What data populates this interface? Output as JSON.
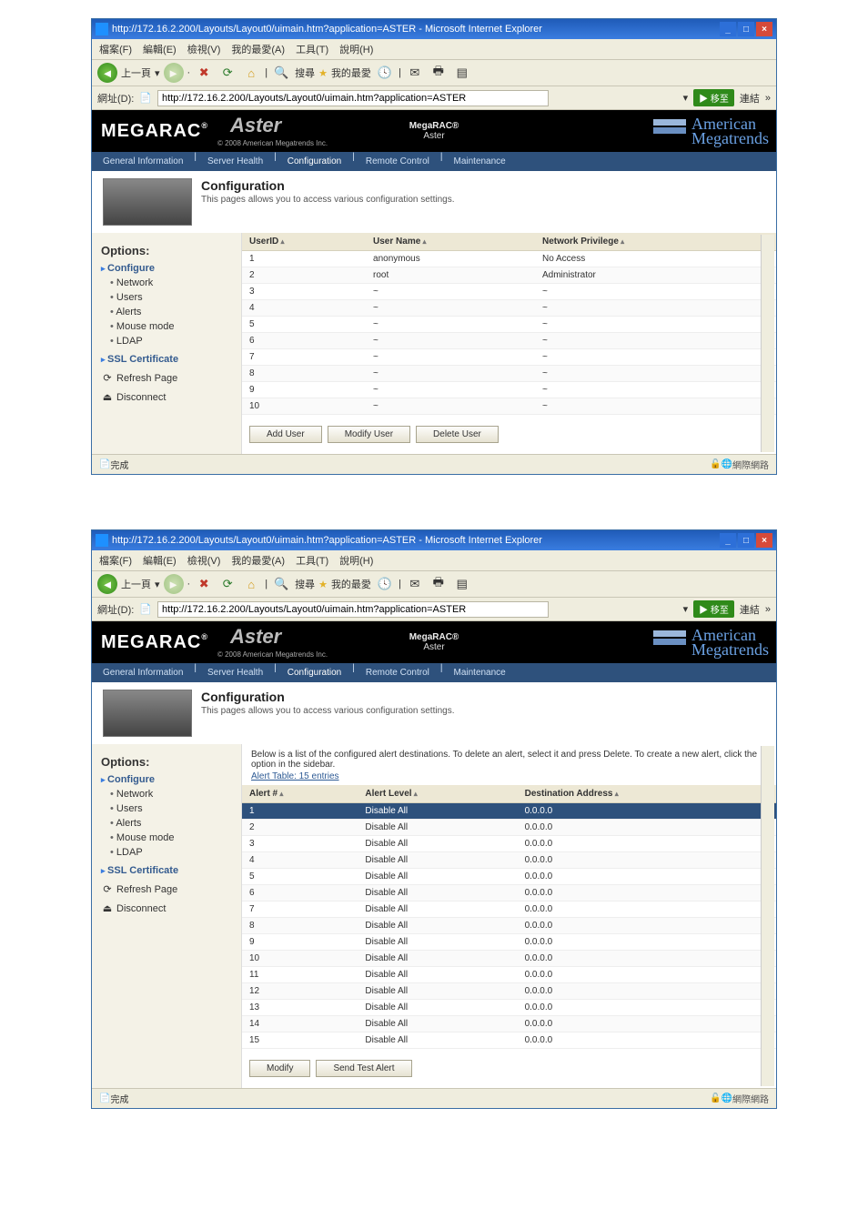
{
  "windowA": {
    "title": "http://172.16.2.200/Layouts/Layout0/uimain.htm?application=ASTER - Microsoft Internet Explorer",
    "menus": [
      "檔案(F)",
      "編輯(E)",
      "檢視(V)",
      "我的最愛(A)",
      "工具(T)",
      "說明(H)"
    ],
    "back_label": "上一頁",
    "tb_search": "搜尋",
    "tb_fav": "我的最愛",
    "addr_label": "網址(D):",
    "url": "http://172.16.2.200/Layouts/Layout0/uimain.htm?application=ASTER",
    "go_label": "移至",
    "links_label": "連結",
    "brand": "MEGARAC",
    "aster": "Aster",
    "aster_sub": "© 2008 American Megatrends Inc.",
    "brand_center1": "MegaRAC®",
    "brand_center2": "Aster",
    "ami1": "American",
    "ami2": "Megatrends",
    "tabs": [
      "General Information",
      "Server Health",
      "Configuration",
      "Remote Control",
      "Maintenance"
    ],
    "active_tab": 2,
    "cfg_title": "Configuration",
    "cfg_sub": "This pages allows you to access various configuration settings.",
    "options_title": "Options:",
    "side_group": "Configure",
    "side_items": [
      "Network",
      "Users",
      "Alerts",
      "Mouse mode",
      "LDAP"
    ],
    "side_group2": "SSL Certificate",
    "refresh": "Refresh Page",
    "disconnect": "Disconnect",
    "cols": [
      "UserID",
      "User Name",
      "Network Privilege"
    ],
    "rows": [
      {
        "id": "1",
        "name": "anonymous",
        "priv": "No Access"
      },
      {
        "id": "2",
        "name": "root",
        "priv": "Administrator"
      },
      {
        "id": "3",
        "name": "~",
        "priv": "~"
      },
      {
        "id": "4",
        "name": "~",
        "priv": "~"
      },
      {
        "id": "5",
        "name": "~",
        "priv": "~"
      },
      {
        "id": "6",
        "name": "~",
        "priv": "~"
      },
      {
        "id": "7",
        "name": "~",
        "priv": "~"
      },
      {
        "id": "8",
        "name": "~",
        "priv": "~"
      },
      {
        "id": "9",
        "name": "~",
        "priv": "~"
      },
      {
        "id": "10",
        "name": "~",
        "priv": "~"
      }
    ],
    "btn_add": "Add User",
    "btn_mod": "Modify User",
    "btn_del": "Delete User",
    "status_done": "完成",
    "status_net": "網際網路"
  },
  "windowB": {
    "title": "http://172.16.2.200/Layouts/Layout0/uimain.htm?application=ASTER - Microsoft Internet Explorer",
    "cfg_sub": "This pages allows you to access various configuration settings.",
    "intro": "Below is a list of the configured alert destinations. To delete an alert, select it and press Delete. To create a new alert, click the option in the sidebar.",
    "table_caption": "Alert Table: 15 entries",
    "cols": [
      "Alert #",
      "Alert Level",
      "Destination Address"
    ],
    "rows": [
      {
        "n": "1",
        "lvl": "Disable All",
        "addr": "0.0.0.0",
        "sel": true
      },
      {
        "n": "2",
        "lvl": "Disable All",
        "addr": "0.0.0.0"
      },
      {
        "n": "3",
        "lvl": "Disable All",
        "addr": "0.0.0.0"
      },
      {
        "n": "4",
        "lvl": "Disable All",
        "addr": "0.0.0.0"
      },
      {
        "n": "5",
        "lvl": "Disable All",
        "addr": "0.0.0.0"
      },
      {
        "n": "6",
        "lvl": "Disable All",
        "addr": "0.0.0.0"
      },
      {
        "n": "7",
        "lvl": "Disable All",
        "addr": "0.0.0.0"
      },
      {
        "n": "8",
        "lvl": "Disable All",
        "addr": "0.0.0.0"
      },
      {
        "n": "9",
        "lvl": "Disable All",
        "addr": "0.0.0.0"
      },
      {
        "n": "10",
        "lvl": "Disable All",
        "addr": "0.0.0.0"
      },
      {
        "n": "11",
        "lvl": "Disable All",
        "addr": "0.0.0.0"
      },
      {
        "n": "12",
        "lvl": "Disable All",
        "addr": "0.0.0.0"
      },
      {
        "n": "13",
        "lvl": "Disable All",
        "addr": "0.0.0.0"
      },
      {
        "n": "14",
        "lvl": "Disable All",
        "addr": "0.0.0.0"
      },
      {
        "n": "15",
        "lvl": "Disable All",
        "addr": "0.0.0.0"
      }
    ],
    "btn_mod": "Modify",
    "btn_send": "Send Test Alert"
  }
}
